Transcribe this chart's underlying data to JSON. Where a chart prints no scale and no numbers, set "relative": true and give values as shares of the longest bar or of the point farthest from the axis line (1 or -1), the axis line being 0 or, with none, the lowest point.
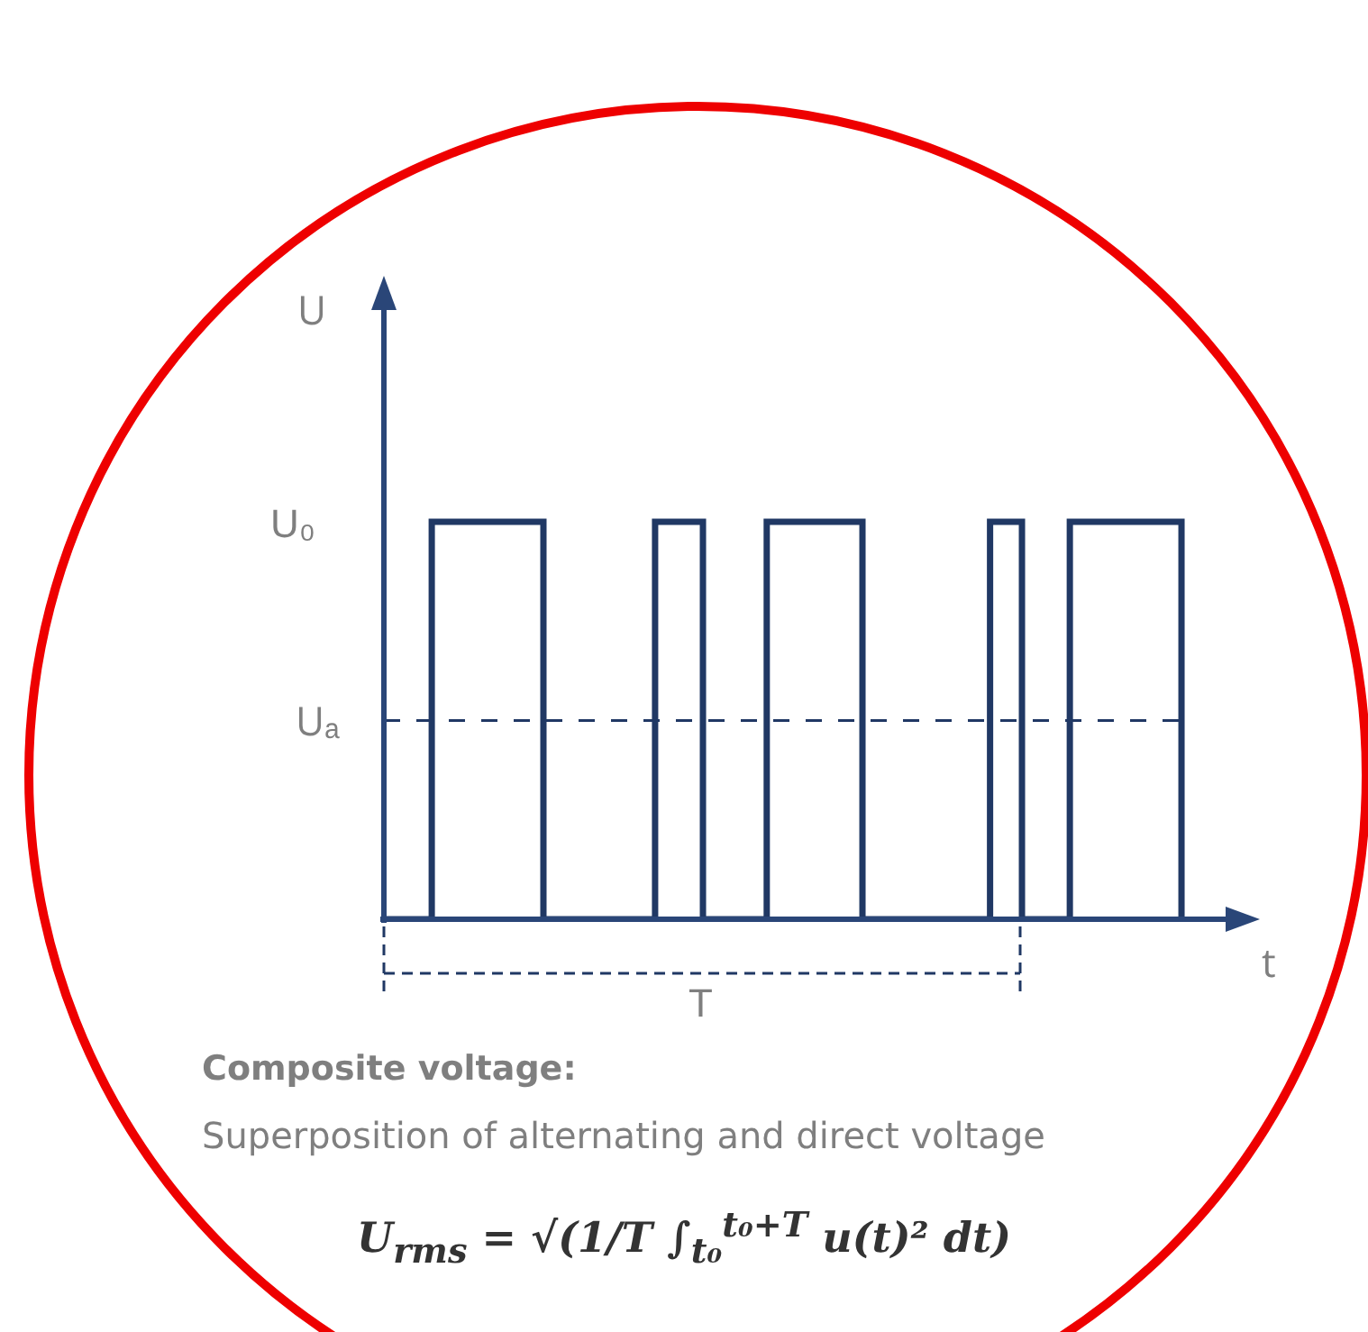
{
  "chart_data": {
    "type": "step",
    "xlabel": "t",
    "ylabel": "U",
    "relative": true,
    "categories": [
      null,
      null,
      null,
      null,
      null,
      null,
      null,
      null,
      null,
      null,
      null,
      null,
      null,
      null,
      null,
      null,
      null,
      null,
      null,
      null,
      null,
      null,
      null,
      null,
      null,
      null,
      null,
      null,
      null,
      null,
      null,
      null,
      null,
      null,
      null,
      null,
      null,
      null,
      null,
      null,
      null,
      null,
      null,
      null,
      null,
      null,
      null,
      null,
      null,
      null,
      null
    ],
    "series": [
      {
        "color": "#203864",
        "values": [
          0,
          0,
          0,
          1,
          1,
          1,
          1,
          1,
          1,
          1,
          0,
          0,
          0,
          0,
          0,
          0,
          0,
          1,
          1,
          1,
          0,
          0,
          0,
          0,
          1,
          1,
          1,
          1,
          1,
          1,
          0,
          0,
          0,
          0,
          0,
          0,
          0,
          0,
          1,
          1,
          0,
          0,
          0,
          1,
          1,
          1,
          1,
          1,
          1,
          1,
          0
        ]
      }
    ],
    "ref_lines": [
      {
        "axis": "y",
        "value": 0.5,
        "label": "Uₐ",
        "line_style": "dashed",
        "color": "#203864"
      }
    ],
    "annotations": [
      "U₀",
      "T",
      "Composite voltage:",
      "Superposition of alternating and direct voltage",
      "U$_{rms}$ = √(1/T ∫$_{t₀}$$^{t₀+T}$ u(t)² dt)"
    ]
  }
}
